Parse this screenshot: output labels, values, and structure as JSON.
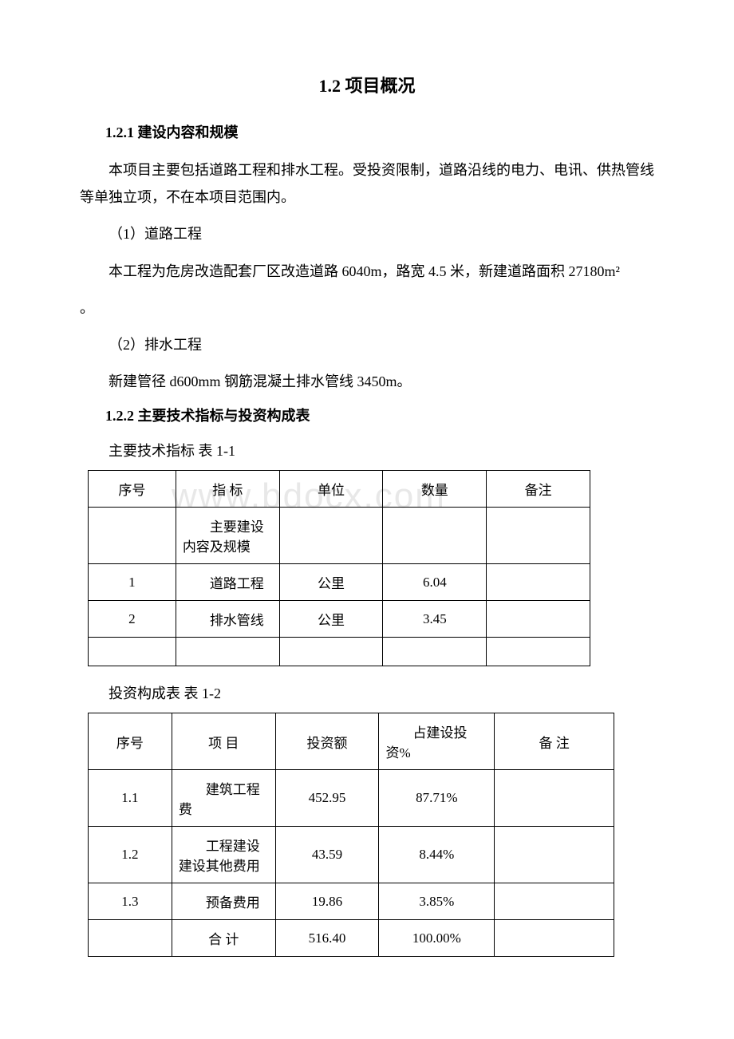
{
  "watermark": "www.bdocx.com",
  "title": "1.2 项目概况",
  "section1": {
    "heading": "1.2.1 建设内容和规模",
    "p1": "本项目主要包括道路工程和排水工程。受投资限制，道路沿线的电力、电讯、供热管线等单独立项，不在本项目范围内。",
    "p2": "（1）道路工程",
    "p3": "本工程为危房改造配套厂区改造道路 6040m，路宽 4.5 米，新建道路面积 27180m²",
    "p3_trail": "。",
    "p4": "（2）排水工程",
    "p5": "新建管径 d600mm 钢筋混凝土排水管线 3450m。"
  },
  "section2": {
    "heading": "1.2.2 主要技术指标与投资构成表",
    "table1_caption": "主要技术指标  表 1-1",
    "table2_caption": "投资构成表 表 1-2"
  },
  "table1": {
    "type": "table",
    "border_color": "#000000",
    "font_size": 17,
    "columns": [
      "序号",
      "指 标",
      "单位",
      "数量",
      "备注"
    ],
    "rows": [
      [
        "",
        "主要建设内容及规模",
        "",
        "",
        ""
      ],
      [
        "1",
        "道路工程",
        "公里",
        "6.04",
        ""
      ],
      [
        "2",
        "排水管线",
        "公里",
        "3.45",
        ""
      ],
      [
        "",
        "",
        "",
        "",
        ""
      ]
    ]
  },
  "table2": {
    "type": "table",
    "border_color": "#000000",
    "font_size": 17,
    "columns": [
      "序号",
      "项 目",
      "投资额",
      "占建设投资%",
      "备 注"
    ],
    "rows": [
      [
        "1.1",
        "建筑工程费",
        "452.95",
        "87.71%",
        ""
      ],
      [
        "1.2",
        "工程建设建设其他费用",
        "43.59",
        "8.44%",
        ""
      ],
      [
        "1.3",
        "预备费用",
        "19.86",
        "3.85%",
        ""
      ],
      [
        "",
        "合 计",
        "516.40",
        "100.00%",
        ""
      ]
    ]
  }
}
